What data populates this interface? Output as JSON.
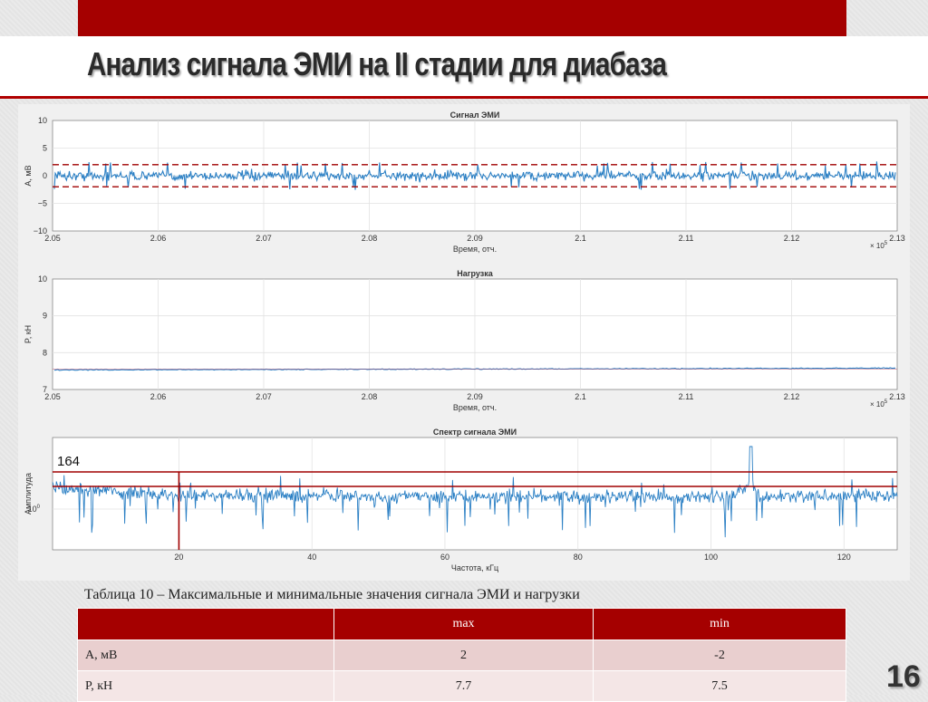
{
  "slide": {
    "title": "Анализ сигнала ЭМИ на II стадии для диабаза",
    "page_number": "16"
  },
  "chart_data": [
    {
      "type": "line",
      "title": "Сигнал ЭМИ",
      "xlabel": "Время, отч.",
      "ylabel": "А, мВ",
      "x_multiplier": "× 10^5",
      "xlim": [
        2.05,
        2.13
      ],
      "ylim": [
        -10,
        10
      ],
      "x_ticks": [
        "2.05",
        "2.06",
        "2.07",
        "2.08",
        "2.09",
        "2.1",
        "2.11",
        "2.12",
        "2.13"
      ],
      "y_ticks": [
        "10",
        "5",
        "0",
        "−5",
        "−10"
      ],
      "grid": true,
      "series": [
        {
          "approx_mean": 0,
          "approx_range": [
            -2.5,
            2.5
          ],
          "color": "#2a7fc4"
        }
      ],
      "threshold_lines": [
        2,
        -2
      ],
      "threshold_color": "#a00000"
    },
    {
      "type": "line",
      "title": "Нагрузка",
      "xlabel": "Время, отч.",
      "ylabel": "P, кН",
      "x_multiplier": "× 10^5",
      "xlim": [
        2.05,
        2.13
      ],
      "ylim": [
        7,
        10
      ],
      "x_ticks": [
        "2.05",
        "2.06",
        "2.07",
        "2.08",
        "2.09",
        "2.1",
        "2.11",
        "2.12",
        "2.13"
      ],
      "y_ticks": [
        "10",
        "9",
        "8",
        "7"
      ],
      "grid": true,
      "series": [
        {
          "approx_start": 7.53,
          "approx_end": 7.58,
          "color": "#2a7fc4"
        }
      ]
    },
    {
      "type": "line",
      "title": "Спектр сигнала ЭМИ",
      "xlabel": "Частота, кГц",
      "ylabel": "Амплитуда",
      "y_scale": "log",
      "y_tick_label": "10^0",
      "xlim": [
        1,
        128
      ],
      "x_ticks": [
        "20",
        "40",
        "60",
        "80",
        "100",
        "120"
      ],
      "grid": true,
      "series": [
        {
          "peak_x": 106,
          "color": "#2a7fc4"
        }
      ],
      "annotation": "164",
      "annotation_vline_x": 20,
      "annotation_color": "#a00000"
    }
  ],
  "table": {
    "caption": "Таблица 10 – Максимальные и минимальные значения сигнала ЭМИ и нагрузки",
    "headers": [
      "",
      "max",
      "min"
    ],
    "rows": [
      {
        "label": "А, мВ",
        "max": "2",
        "min": "-2"
      },
      {
        "label": "P, кН",
        "max": "7.7",
        "min": "7.5"
      }
    ]
  }
}
